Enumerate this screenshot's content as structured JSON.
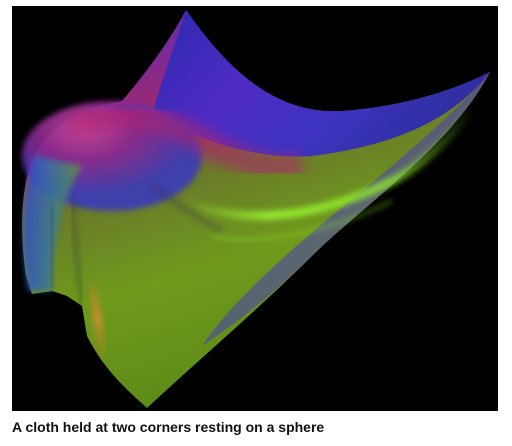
{
  "figure": {
    "caption": "A cloth held at two corners resting on a sphere",
    "background_color": "#000000",
    "colors": {
      "purple": "#5a2bd0",
      "magenta": "#b02070",
      "green": "#6f9a1c",
      "bright_green": "#8ee82a",
      "orange": "#d07a20",
      "blue": "#2a4ad8"
    }
  }
}
